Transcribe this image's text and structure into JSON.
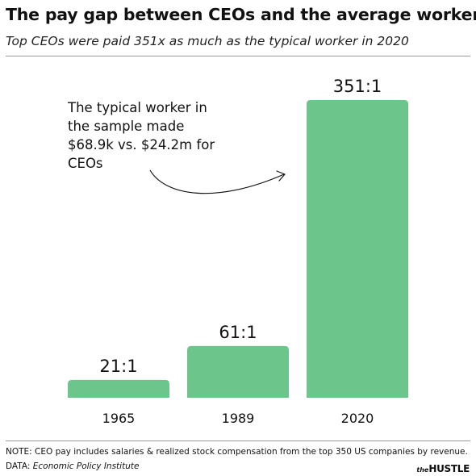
{
  "header": {
    "title": "The pay gap between CEOs and the average worker",
    "subtitle": "Top CEOs were paid 351x as much as the typical worker in 2020"
  },
  "annotation": {
    "text": "The typical worker in the sample made $68.9k vs. $24.2m for CEOs"
  },
  "footer": {
    "note": "NOTE: CEO pay includes salaries & realized stock compensation from the top 350 US companies by revenue.",
    "source_label": "DATA:",
    "source_name": "Economic Policy Institute",
    "brand_prefix": "the",
    "brand_name": "HUSTLE"
  },
  "colors": {
    "bar": "#6cc58b",
    "text": "#111111",
    "rule": "#9a9a9a"
  },
  "chart_data": {
    "type": "bar",
    "title": "The pay gap between CEOs and the average worker",
    "subtitle": "Top CEOs were paid 351x as much as the typical worker in 2020",
    "categories": [
      "1965",
      "1989",
      "2020"
    ],
    "values": [
      21,
      61,
      351
    ],
    "data_labels": [
      "21:1",
      "61:1",
      "351:1"
    ],
    "unit": "CEO-to-worker pay ratio",
    "ylim": [
      0,
      351
    ],
    "grid": false,
    "legend": "none"
  }
}
